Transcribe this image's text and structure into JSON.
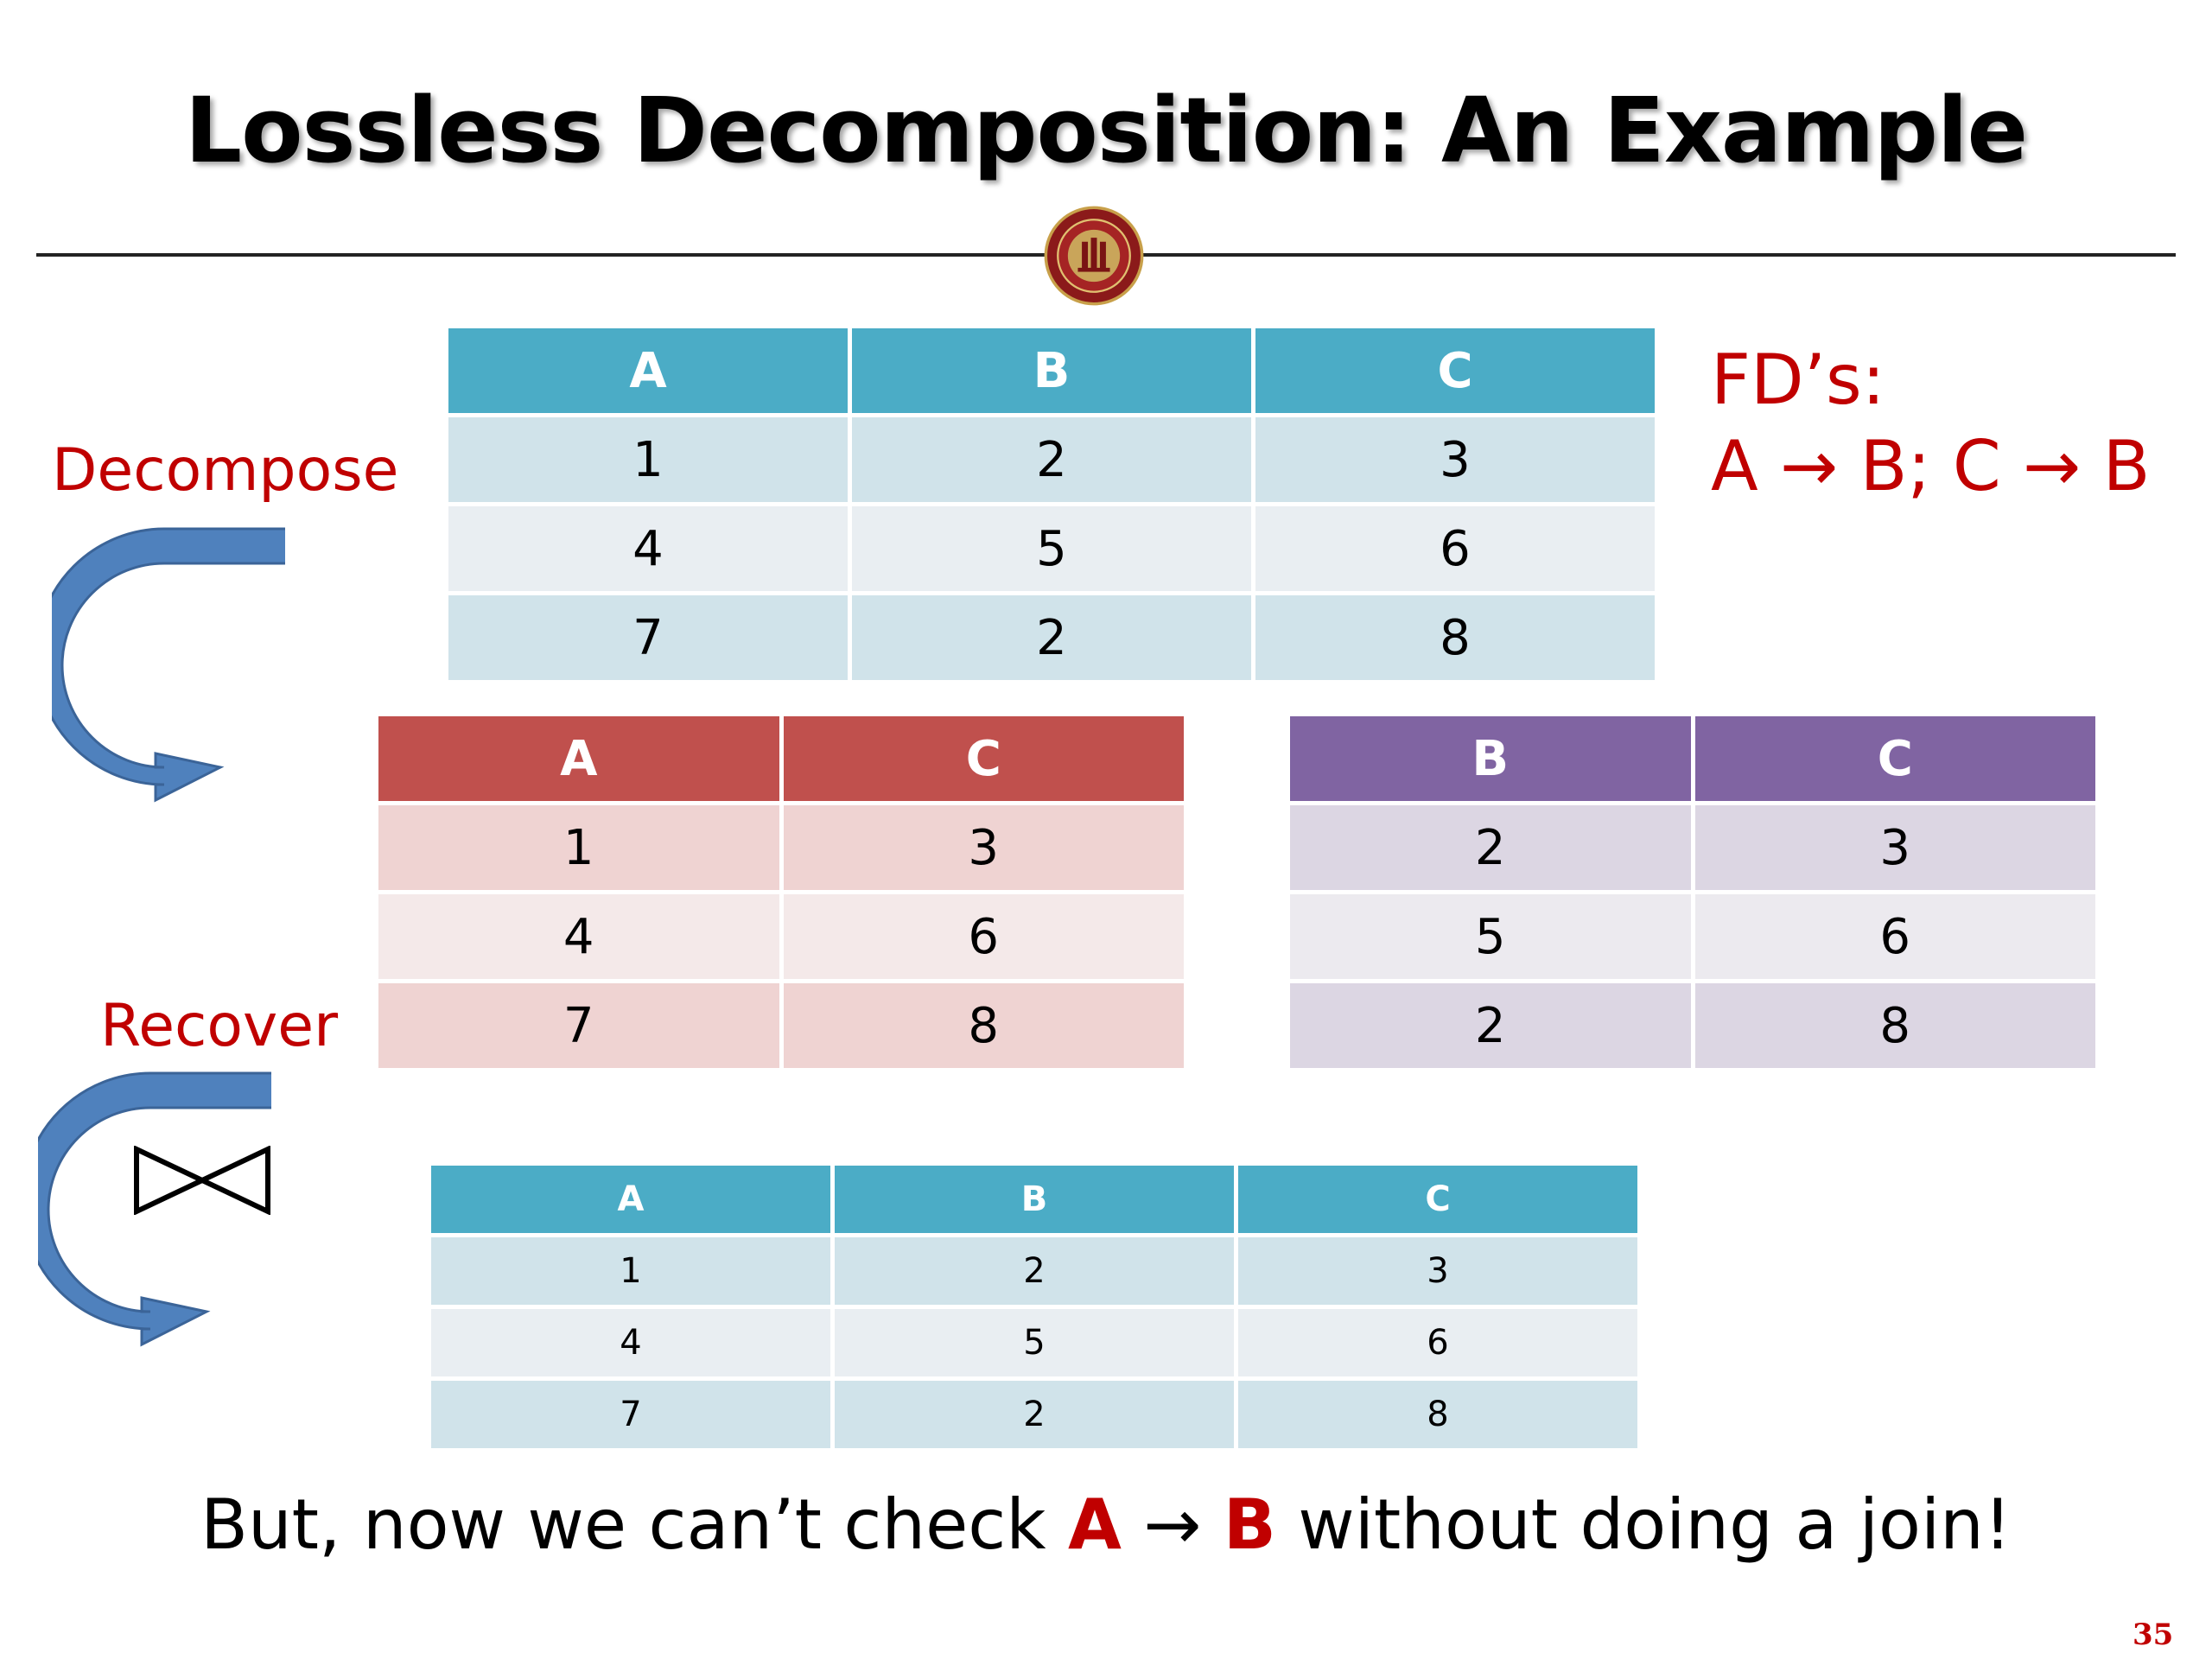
{
  "slide": {
    "title": "Lossless Decomposition: An Example",
    "fd_label": "FD’s:",
    "fd_rule": "A → B; C → B",
    "decompose_label": "Decompose",
    "recover_label": "Recover",
    "join_symbol": "⋈",
    "bottom_text": {
      "before": "But, now we can’t check ",
      "lhs": "A",
      "arrow": " → ",
      "rhs": "B",
      "after": " without doing a join!"
    },
    "page_number": "35"
  },
  "tables": {
    "original": {
      "headers": [
        "A",
        "B",
        "C"
      ],
      "rows": [
        [
          "1",
          "2",
          "3"
        ],
        [
          "4",
          "5",
          "6"
        ],
        [
          "7",
          "2",
          "8"
        ]
      ]
    },
    "ac": {
      "headers": [
        "A",
        "C"
      ],
      "rows": [
        [
          "1",
          "3"
        ],
        [
          "4",
          "6"
        ],
        [
          "7",
          "8"
        ]
      ]
    },
    "bc": {
      "headers": [
        "B",
        "C"
      ],
      "rows": [
        [
          "2",
          "3"
        ],
        [
          "5",
          "6"
        ],
        [
          "2",
          "8"
        ]
      ]
    },
    "recovered": {
      "headers": [
        "A",
        "B",
        "C"
      ],
      "rows": [
        [
          "1",
          "2",
          "3"
        ],
        [
          "4",
          "5",
          "6"
        ],
        [
          "7",
          "2",
          "8"
        ]
      ]
    }
  },
  "colors": {
    "accent_red": "#c00000",
    "arrow_blue": "#4f81bd",
    "teal_header": "#4bacc6",
    "red_header": "#c0504d",
    "purple_header": "#8064a2"
  },
  "icons": {
    "seal": "university-seal-icon",
    "decompose_arrow": "curved-arrow-icon",
    "recover_arrow": "curved-arrow-icon"
  }
}
